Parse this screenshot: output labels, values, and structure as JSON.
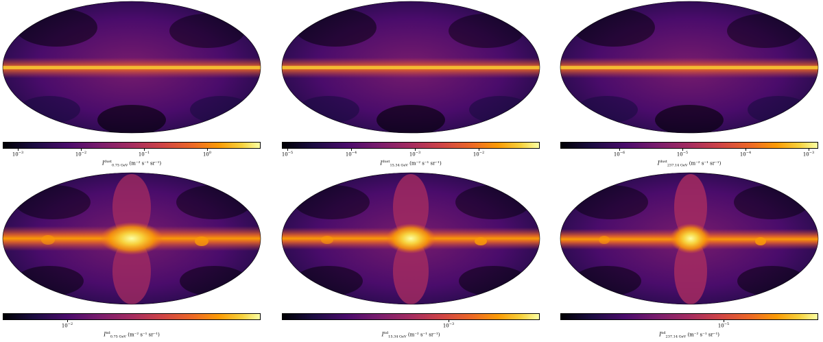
{
  "colormap": [
    "#000004",
    "#1b0c41",
    "#4a0c6b",
    "#781c6d",
    "#a52c60",
    "#cf4446",
    "#ed6925",
    "#fb9b06",
    "#f7d13d",
    "#fcffa4"
  ],
  "panels": [
    {
      "id": "dust-075",
      "map_type": "dust",
      "colorbar": {
        "label_symbol": "I",
        "label_sup": "dust",
        "label_sub": "0.75 GeV",
        "label_unit": "(m⁻² s⁻¹ sr⁻¹)",
        "ticks": [
          {
            "base": "10",
            "exp": "−3"
          },
          {
            "base": "10",
            "exp": "−2"
          },
          {
            "base": "10",
            "exp": "−1"
          },
          {
            "base": "10",
            "exp": "0"
          }
        ]
      }
    },
    {
      "id": "dust-1534",
      "map_type": "dust",
      "colorbar": {
        "label_symbol": "I",
        "label_sup": "dust",
        "label_sub": "15.34 GeV",
        "label_unit": "(m⁻² s⁻¹ sr⁻¹)",
        "ticks": [
          {
            "base": "10",
            "exp": "−5"
          },
          {
            "base": "10",
            "exp": "−4"
          },
          {
            "base": "10",
            "exp": "−3"
          },
          {
            "base": "10",
            "exp": "−2"
          }
        ]
      }
    },
    {
      "id": "dust-23714",
      "map_type": "dust",
      "colorbar": {
        "label_symbol": "I",
        "label_sup": "dust",
        "label_sub": "237.14 GeV",
        "label_unit": "(m⁻² s⁻¹ sr⁻¹)",
        "ticks": [
          {
            "base": "10",
            "exp": "−6"
          },
          {
            "base": "10",
            "exp": "−5"
          },
          {
            "base": "10",
            "exp": "−4"
          },
          {
            "base": "10",
            "exp": "−3"
          }
        ]
      }
    },
    {
      "id": "nd-075",
      "map_type": "nd",
      "colorbar": {
        "label_symbol": "I",
        "label_sup": "nd",
        "label_sub": "0.75 GeV",
        "label_unit": "(m⁻² s⁻¹ sr⁻¹)",
        "ticks": [
          {
            "base": "10",
            "exp": "−2"
          }
        ]
      }
    },
    {
      "id": "nd-1534",
      "map_type": "nd",
      "colorbar": {
        "label_symbol": "I",
        "label_sup": "nd",
        "label_sub": "15.34 GeV",
        "label_unit": "(m⁻² s⁻¹ sr⁻¹)",
        "ticks": [
          {
            "base": "10",
            "exp": "−3"
          }
        ]
      }
    },
    {
      "id": "nd-23714",
      "map_type": "nd",
      "colorbar": {
        "label_symbol": "I",
        "label_sup": "nd",
        "label_sub": "237.14 GeV",
        "label_unit": "(m⁻² s⁻¹ sr⁻¹)",
        "ticks": [
          {
            "base": "10",
            "exp": "−5"
          }
        ]
      }
    }
  ]
}
